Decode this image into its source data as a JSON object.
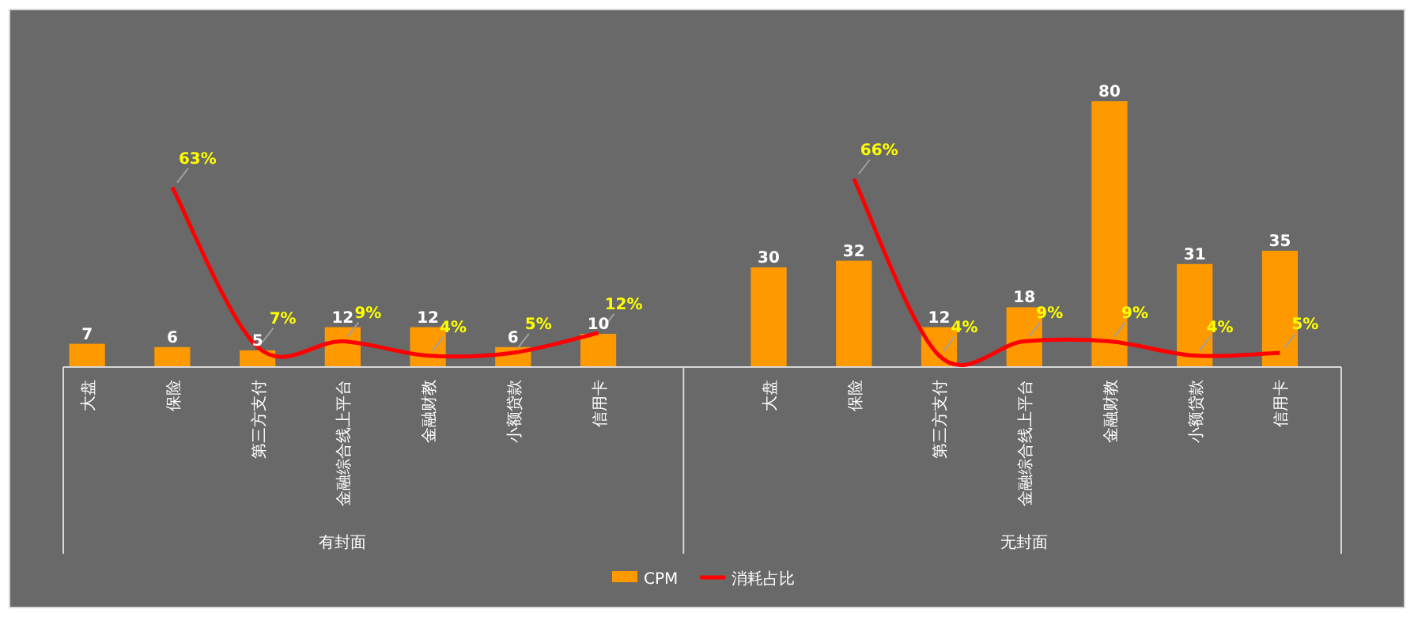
{
  "chart_data": {
    "type": "bar",
    "categories": [
      "大盘",
      "保险",
      "第三方支付",
      "金融综合线上平台",
      "金融财教",
      "小额贷款",
      "信用卡",
      "大盘",
      "保险",
      "第三方支付",
      "金融综合线上平台",
      "金融财教",
      "小额贷款",
      "信用卡"
    ],
    "series": [
      {
        "name": "CPM",
        "color": "#ff9900",
        "values": [
          7,
          6,
          5,
          12,
          12,
          6,
          10,
          30,
          32,
          12,
          18,
          80,
          31,
          35
        ]
      },
      {
        "name": "消耗占比",
        "type": "line",
        "axis": "y2",
        "color": "#ff0000",
        "value_labels": [
          null,
          "63%",
          "7%",
          "9%",
          "4%",
          "5%",
          "12%",
          null,
          "66%",
          "4%",
          "9%",
          "9%",
          "4%",
          "5%"
        ],
        "values": [
          null,
          63,
          7,
          9,
          4,
          5,
          12,
          null,
          66,
          4,
          9,
          9,
          4,
          5
        ]
      }
    ],
    "annotations": [
      "有封面",
      "无封面"
    ],
    "data_labels": true,
    "legend": "bottom",
    "marker": "none",
    "line_style": "solid",
    "grid": false
  }
}
